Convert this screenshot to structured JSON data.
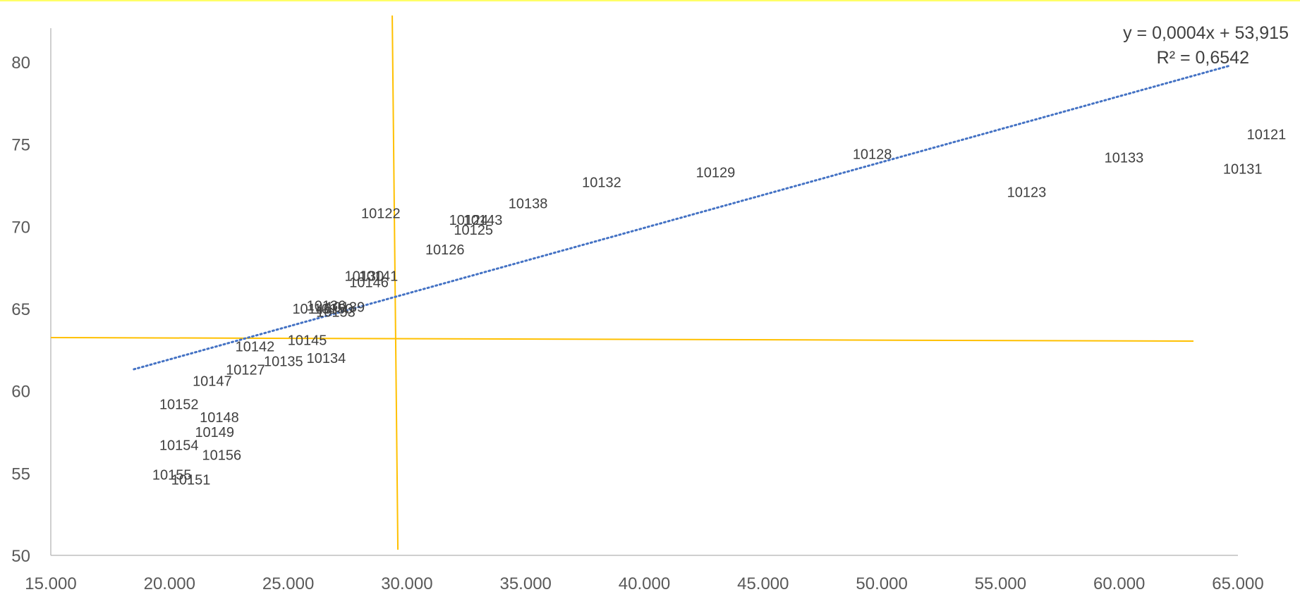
{
  "chart_data": {
    "type": "scatter",
    "title": "",
    "xlabel": "",
    "ylabel": "",
    "xlim": [
      15000,
      65000
    ],
    "ylim": [
      50,
      80
    ],
    "x_ticks": [
      "15.000",
      "20.000",
      "25.000",
      "30.000",
      "35.000",
      "40.000",
      "45.000",
      "50.000",
      "55.000",
      "60.000",
      "65.000"
    ],
    "y_ticks": [
      "50",
      "55",
      "60",
      "65",
      "70",
      "75",
      "80"
    ],
    "grid": false,
    "legend": "none",
    "points": [
      {
        "label": "10121",
        "x": 66200,
        "y": 75.6
      },
      {
        "label": "10131",
        "x": 65200,
        "y": 73.5
      },
      {
        "label": "10133",
        "x": 60200,
        "y": 74.2
      },
      {
        "label": "10123",
        "x": 56100,
        "y": 72.1
      },
      {
        "label": "10128",
        "x": 49600,
        "y": 74.4
      },
      {
        "label": "10129",
        "x": 43000,
        "y": 73.3
      },
      {
        "label": "10132",
        "x": 38200,
        "y": 72.7
      },
      {
        "label": "10138",
        "x": 35100,
        "y": 71.4
      },
      {
        "label": "10122",
        "x": 28900,
        "y": 70.8
      },
      {
        "label": "10124",
        "x": 32600,
        "y": 70.4
      },
      {
        "label": "10143",
        "x": 33200,
        "y": 70.4
      },
      {
        "label": "10125",
        "x": 32800,
        "y": 69.8
      },
      {
        "label": "10126",
        "x": 31600,
        "y": 68.6
      },
      {
        "label": "10130",
        "x": 28200,
        "y": 67.0
      },
      {
        "label": "10141",
        "x": 28800,
        "y": 67.0
      },
      {
        "label": "10146",
        "x": 28400,
        "y": 66.6
      },
      {
        "label": "10140",
        "x": 26000,
        "y": 65.0
      },
      {
        "label": "10136",
        "x": 26600,
        "y": 65.2
      },
      {
        "label": "10150",
        "x": 26900,
        "y": 65.0
      },
      {
        "label": "10139",
        "x": 27400,
        "y": 65.1
      },
      {
        "label": "10153",
        "x": 27000,
        "y": 64.8
      },
      {
        "label": "10145",
        "x": 25800,
        "y": 63.1
      },
      {
        "label": "10142",
        "x": 23600,
        "y": 62.7
      },
      {
        "label": "10134",
        "x": 26600,
        "y": 62.0
      },
      {
        "label": "10135",
        "x": 24800,
        "y": 61.8
      },
      {
        "label": "10127",
        "x": 23200,
        "y": 61.3
      },
      {
        "label": "10147",
        "x": 21800,
        "y": 60.6
      },
      {
        "label": "10152",
        "x": 20400,
        "y": 59.2
      },
      {
        "label": "10148",
        "x": 22100,
        "y": 58.4
      },
      {
        "label": "10149",
        "x": 21900,
        "y": 57.5
      },
      {
        "label": "10154",
        "x": 20400,
        "y": 56.7
      },
      {
        "label": "10156",
        "x": 22200,
        "y": 56.1
      },
      {
        "label": "10155",
        "x": 20100,
        "y": 54.9
      },
      {
        "label": "10151",
        "x": 20900,
        "y": 54.6
      }
    ],
    "trendline": {
      "equation": "y = 0,0004x + 53,915",
      "r_squared": "R² = 0,6542",
      "x_range": [
        18500,
        64700
      ],
      "color": "#4472C4"
    },
    "reference_lines": {
      "vertical_x": 29500,
      "horizontal_y": 63.2,
      "color": "#FFC000"
    }
  },
  "colors": {
    "axis": "#BFBFBF",
    "top_border": "#FFFF66"
  }
}
